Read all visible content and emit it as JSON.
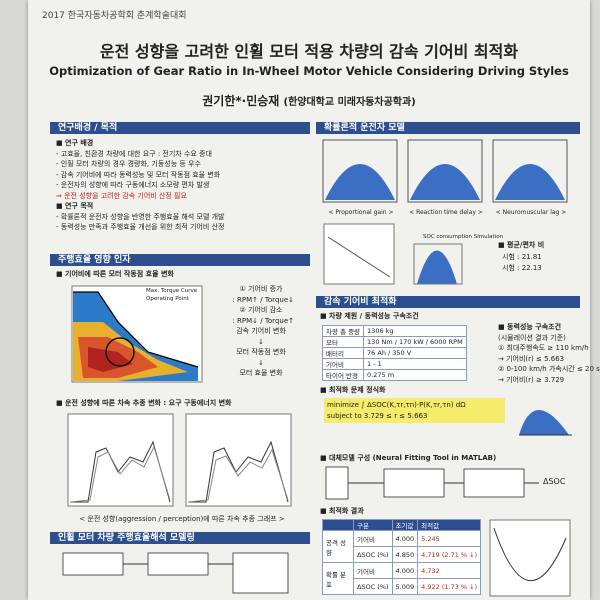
{
  "header": {
    "conference": "2017 한국자동차공학회 춘계학술대회",
    "title_ko": "운전 성향을 고려한 인휠 모터 적용 차량의 감속 기어비 최적화",
    "title_en": "Optimization of Gear Ratio in In-Wheel Motor Vehicle Considering Driving Styles",
    "authors": "권기한*·민승재",
    "affiliation": "(한양대학교 미래자동차공학과)"
  },
  "background": {
    "heading": "연구배경 / 목적",
    "items": [
      "■ 연구 배경",
      "- 고효율, 친환경 차량에 대한 요구 : 전기차 수요 증대",
      "- 인휠 모터 차량의 경우 경량화, 기동성능 등 우수",
      "- 감속 기어비에 따라 동력성능 및 모터 작동점 효율 변화",
      "- 운전자의 성향에 따라 구동에너지 소모량 편차 발생",
      "⇒ 운전 성향을 고려한 감속 기어비 산정 필요",
      "■ 연구 목적",
      "- 확률론적 운전자 성향을 반영한 주행효율 해석 모델 개발",
      "- 동력성능 만족과 주행효율 개선을 위한 최적 기어비 산정"
    ]
  },
  "factors": {
    "heading": "주행효율 영향 인자",
    "sub1": "■ 기어비에 따른 모터 작동점 효율 변화",
    "legend": [
      "Max. Torque Curve",
      "Operating Point"
    ],
    "notes": [
      "① 기어비 증가",
      "  : RPM↑ / Torque↓",
      "② 기어비 감소",
      "  : RPM↓ / Torque↑",
      "감속 기어비 변화",
      "↓",
      "모터 작동점 변화",
      "↓",
      "모터 효율 변화"
    ],
    "sub2": "■ 운전 성향에 따른 차속 추종 변화 : 요구 구동에너지 변화",
    "caption": "< 운전 성향(aggression / perception)에 따른 차속 추종 그래프 >"
  },
  "modeling": {
    "heading": "인휠 모터 차량 주행효율해석 모델링"
  },
  "driver_model": {
    "heading": "확률론적 운전자 모델",
    "captions": [
      "< Proportional gain >",
      "< Reaction time delay >",
      "< Neuromuscular lag >"
    ],
    "sim_label": "SOC consumption Simulation",
    "ratio_heading": "■ 평균/편차 비",
    "ratio_lines": [
      "시험 : 21.81",
      "시험 : 22.13"
    ]
  },
  "optimization": {
    "heading": "감속 기어비 최적화",
    "spec_heading": "■ 차량 제원 / 동력성능 구속조건",
    "spec_table": [
      [
        "차량 총 중량",
        "1306 kg"
      ],
      [
        "모터",
        "130 Nm / 170 kW / 6000 RPM"
      ],
      [
        "배터리",
        "76 Ah / 350 V"
      ],
      [
        "기어비",
        "1 - 1"
      ],
      [
        "타이어 반경",
        "0.275 m"
      ]
    ],
    "constraints": [
      "■ 동력성능 구속조건",
      "(시뮬레이션 결과 기준)",
      "① 최대주행속도 ≥ 110 km/h",
      "→ 기어비(r) ≤ 5.663",
      "② 0-100 km/h 가속시간 ≤ 20 s",
      "→ 기어비(r) ≥ 3.729"
    ],
    "problem_heading": "■ 최적화 문제 정식화",
    "objective": "minimize ∫ ΔSOC(K,τr,τn)·P(K,τr,τn) dΩ",
    "subject": "subject to 3.729 ≤ r ≤ 5.663",
    "surrogate_heading": "■ 대체모델 구성 (Neural Fitting Tool in MATLAB)",
    "surrogate_output": "ΔSOC",
    "results_heading": "■ 최적화 결과",
    "results_header": [
      "구분",
      "초기값",
      "최적값"
    ],
    "results_groups": [
      "공격 성향",
      "확률 분포"
    ],
    "results_rows": [
      [
        "기어비",
        "4.000",
        "5.245"
      ],
      [
        "ΔSOC (%)",
        "4.850",
        "4.719 (2.71 % ↓)"
      ],
      [
        "기어비",
        "4.000",
        "4.732"
      ],
      [
        "ΔSOC (%)",
        "5.009",
        "4.922 (1.73 % ↓)"
      ]
    ]
  }
}
